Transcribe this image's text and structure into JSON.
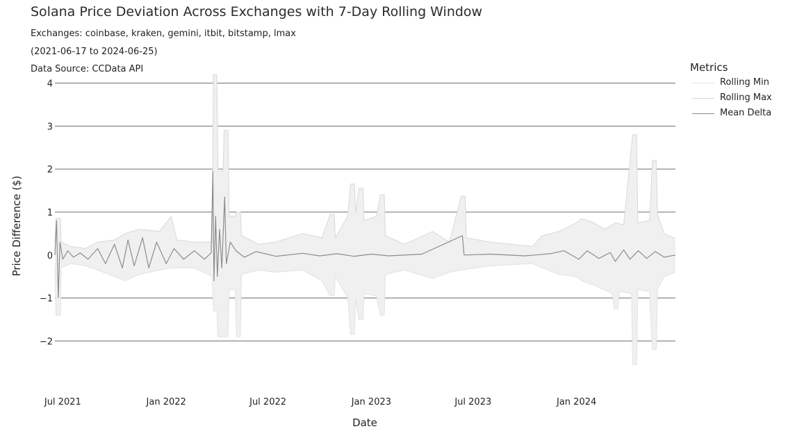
{
  "chart_data": {
    "type": "line",
    "title": "Solana Price Deviation Across Exchanges with 7-Day Rolling Window",
    "subtitle_lines": [
      "Exchanges: coinbase, kraken, gemini, itbit, bitstamp, lmax",
      "(2021-06-17 to 2024-06-25)",
      "Data Source: CCData API"
    ],
    "xlabel": "Date",
    "ylabel": "Price Difference ($)",
    "x_range": [
      "2021-06-17",
      "2024-06-25"
    ],
    "ylim": [
      -2.9,
      4.3
    ],
    "y_ticks": [
      -2,
      -1,
      0,
      1,
      2,
      3,
      4
    ],
    "y_tick_labels": [
      "−2",
      "−1",
      "0",
      "1",
      "2",
      "3",
      "4"
    ],
    "x_ticks": [
      "2021-07-01",
      "2022-01-01",
      "2022-07-01",
      "2023-01-01",
      "2023-07-01",
      "2024-01-01"
    ],
    "x_tick_labels": [
      "Jul 2021",
      "Jan 2022",
      "Jul 2022",
      "Jan 2023",
      "Jul 2023",
      "Jan 2024"
    ],
    "grid": "horizontal",
    "legend": {
      "title": "Metrics",
      "position": "right",
      "entries": [
        "Rolling Min",
        "Rolling Max",
        "Mean Delta"
      ]
    },
    "series": [
      {
        "name": "Rolling Max",
        "color": "#d8d8d8",
        "points": [
          [
            "2021-06-17",
            0.3
          ],
          [
            "2021-06-19",
            0.85
          ],
          [
            "2021-06-27",
            0.85
          ],
          [
            "2021-06-28",
            0.3
          ],
          [
            "2021-07-15",
            0.2
          ],
          [
            "2021-08-10",
            0.15
          ],
          [
            "2021-09-01",
            0.3
          ],
          [
            "2021-10-01",
            0.35
          ],
          [
            "2021-10-20",
            0.5
          ],
          [
            "2021-11-15",
            0.6
          ],
          [
            "2021-12-20",
            0.55
          ],
          [
            "2022-01-10",
            0.9
          ],
          [
            "2022-01-20",
            0.35
          ],
          [
            "2022-02-20",
            0.3
          ],
          [
            "2022-03-24",
            0.3
          ],
          [
            "2022-03-26",
            4.2
          ],
          [
            "2022-04-01",
            4.2
          ],
          [
            "2022-04-03",
            1.95
          ],
          [
            "2022-04-12",
            1.95
          ],
          [
            "2022-04-14",
            2.9
          ],
          [
            "2022-04-21",
            2.9
          ],
          [
            "2022-04-23",
            0.9
          ],
          [
            "2022-05-04",
            0.9
          ],
          [
            "2022-05-06",
            1.0
          ],
          [
            "2022-05-13",
            1.0
          ],
          [
            "2022-05-15",
            0.45
          ],
          [
            "2022-06-15",
            0.25
          ],
          [
            "2022-07-15",
            0.3
          ],
          [
            "2022-09-01",
            0.5
          ],
          [
            "2022-10-05",
            0.4
          ],
          [
            "2022-10-20",
            0.95
          ],
          [
            "2022-10-27",
            0.95
          ],
          [
            "2022-10-29",
            0.4
          ],
          [
            "2022-11-20",
            0.9
          ],
          [
            "2022-11-25",
            1.65
          ],
          [
            "2022-12-02",
            1.65
          ],
          [
            "2022-12-04",
            1.0
          ],
          [
            "2022-12-10",
            1.55
          ],
          [
            "2022-12-17",
            1.55
          ],
          [
            "2022-12-19",
            0.8
          ],
          [
            "2023-01-10",
            0.9
          ],
          [
            "2023-01-17",
            1.4
          ],
          [
            "2023-01-24",
            1.4
          ],
          [
            "2023-01-26",
            0.45
          ],
          [
            "2023-03-01",
            0.25
          ],
          [
            "2023-04-20",
            0.55
          ],
          [
            "2023-05-20",
            0.3
          ],
          [
            "2023-06-10",
            1.37
          ],
          [
            "2023-06-17",
            1.37
          ],
          [
            "2023-06-19",
            0.4
          ],
          [
            "2023-08-01",
            0.3
          ],
          [
            "2023-10-15",
            0.2
          ],
          [
            "2023-11-01",
            0.45
          ],
          [
            "2023-12-01",
            0.55
          ],
          [
            "2024-01-01",
            0.75
          ],
          [
            "2024-01-10",
            0.85
          ],
          [
            "2024-02-01",
            0.75
          ],
          [
            "2024-02-20",
            0.6
          ],
          [
            "2024-03-10",
            0.75
          ],
          [
            "2024-03-25",
            0.7
          ],
          [
            "2024-04-10",
            2.8
          ],
          [
            "2024-04-17",
            2.8
          ],
          [
            "2024-04-19",
            0.75
          ],
          [
            "2024-05-10",
            0.8
          ],
          [
            "2024-05-15",
            2.2
          ],
          [
            "2024-05-22",
            2.2
          ],
          [
            "2024-05-24",
            0.95
          ],
          [
            "2024-06-05",
            0.5
          ],
          [
            "2024-06-25",
            0.38
          ]
        ]
      },
      {
        "name": "Rolling Min",
        "color": "#e2e2e2",
        "points": [
          [
            "2021-06-17",
            -0.25
          ],
          [
            "2021-06-19",
            -1.4
          ],
          [
            "2021-06-27",
            -1.4
          ],
          [
            "2021-06-28",
            -0.3
          ],
          [
            "2021-07-15",
            -0.2
          ],
          [
            "2021-08-10",
            -0.25
          ],
          [
            "2021-09-01",
            -0.35
          ],
          [
            "2021-10-01",
            -0.5
          ],
          [
            "2021-10-20",
            -0.6
          ],
          [
            "2021-11-15",
            -0.45
          ],
          [
            "2021-12-20",
            -0.35
          ],
          [
            "2022-01-10",
            -0.3
          ],
          [
            "2022-02-20",
            -0.3
          ],
          [
            "2022-03-24",
            -0.5
          ],
          [
            "2022-03-26",
            -1.3
          ],
          [
            "2022-04-01",
            -1.3
          ],
          [
            "2022-04-03",
            -1.9
          ],
          [
            "2022-04-21",
            -1.9
          ],
          [
            "2022-04-23",
            -0.8
          ],
          [
            "2022-05-04",
            -0.8
          ],
          [
            "2022-05-06",
            -1.9
          ],
          [
            "2022-05-13",
            -1.9
          ],
          [
            "2022-05-15",
            -0.45
          ],
          [
            "2022-06-15",
            -0.35
          ],
          [
            "2022-07-15",
            -0.4
          ],
          [
            "2022-09-01",
            -0.35
          ],
          [
            "2022-10-05",
            -0.6
          ],
          [
            "2022-10-20",
            -0.95
          ],
          [
            "2022-10-27",
            -0.95
          ],
          [
            "2022-10-29",
            -0.5
          ],
          [
            "2022-11-20",
            -1.0
          ],
          [
            "2022-11-25",
            -1.85
          ],
          [
            "2022-12-02",
            -1.85
          ],
          [
            "2022-12-04",
            -1.0
          ],
          [
            "2022-12-10",
            -1.5
          ],
          [
            "2022-12-17",
            -1.5
          ],
          [
            "2022-12-19",
            -0.9
          ],
          [
            "2023-01-10",
            -0.95
          ],
          [
            "2023-01-17",
            -1.4
          ],
          [
            "2023-01-24",
            -1.4
          ],
          [
            "2023-01-26",
            -0.45
          ],
          [
            "2023-03-01",
            -0.35
          ],
          [
            "2023-04-20",
            -0.55
          ],
          [
            "2023-05-20",
            -0.4
          ],
          [
            "2023-06-10",
            -0.35
          ],
          [
            "2023-08-01",
            -0.25
          ],
          [
            "2023-10-15",
            -0.2
          ],
          [
            "2023-11-01",
            -0.3
          ],
          [
            "2023-12-01",
            -0.45
          ],
          [
            "2024-01-01",
            -0.5
          ],
          [
            "2024-01-10",
            -0.6
          ],
          [
            "2024-02-01",
            -0.7
          ],
          [
            "2024-03-05",
            -0.9
          ],
          [
            "2024-03-08",
            -1.25
          ],
          [
            "2024-03-15",
            -1.25
          ],
          [
            "2024-03-17",
            -0.85
          ],
          [
            "2024-04-08",
            -0.9
          ],
          [
            "2024-04-10",
            -2.55
          ],
          [
            "2024-04-17",
            -2.55
          ],
          [
            "2024-04-19",
            -0.8
          ],
          [
            "2024-05-10",
            -0.85
          ],
          [
            "2024-05-15",
            -2.2
          ],
          [
            "2024-05-22",
            -2.2
          ],
          [
            "2024-05-24",
            -0.8
          ],
          [
            "2024-06-05",
            -0.5
          ],
          [
            "2024-06-25",
            -0.4
          ]
        ]
      },
      {
        "name": "Mean Delta",
        "color": "#8c8c8c",
        "points": [
          [
            "2021-06-17",
            0.0
          ],
          [
            "2021-06-20",
            0.8
          ],
          [
            "2021-06-23",
            -1.0
          ],
          [
            "2021-06-26",
            0.3
          ],
          [
            "2021-07-01",
            -0.1
          ],
          [
            "2021-07-10",
            0.1
          ],
          [
            "2021-07-20",
            -0.05
          ],
          [
            "2021-08-01",
            0.05
          ],
          [
            "2021-08-15",
            -0.1
          ],
          [
            "2021-09-01",
            0.15
          ],
          [
            "2021-09-15",
            -0.2
          ],
          [
            "2021-10-01",
            0.25
          ],
          [
            "2021-10-15",
            -0.3
          ],
          [
            "2021-10-25",
            0.35
          ],
          [
            "2021-11-05",
            -0.25
          ],
          [
            "2021-11-20",
            0.4
          ],
          [
            "2021-12-01",
            -0.3
          ],
          [
            "2021-12-15",
            0.3
          ],
          [
            "2022-01-01",
            -0.2
          ],
          [
            "2022-01-15",
            0.15
          ],
          [
            "2022-02-01",
            -0.1
          ],
          [
            "2022-02-20",
            0.1
          ],
          [
            "2022-03-10",
            -0.1
          ],
          [
            "2022-03-22",
            0.05
          ],
          [
            "2022-03-25",
            1.95
          ],
          [
            "2022-03-27",
            -0.6
          ],
          [
            "2022-03-30",
            0.9
          ],
          [
            "2022-04-02",
            -0.5
          ],
          [
            "2022-04-06",
            0.6
          ],
          [
            "2022-04-10",
            -0.3
          ],
          [
            "2022-04-15",
            1.35
          ],
          [
            "2022-04-18",
            -0.2
          ],
          [
            "2022-04-25",
            0.3
          ],
          [
            "2022-05-05",
            0.1
          ],
          [
            "2022-05-20",
            -0.05
          ],
          [
            "2022-06-10",
            0.08
          ],
          [
            "2022-07-15",
            -0.03
          ],
          [
            "2022-09-01",
            0.04
          ],
          [
            "2022-10-01",
            -0.02
          ],
          [
            "2022-11-01",
            0.03
          ],
          [
            "2022-12-01",
            -0.03
          ],
          [
            "2023-01-01",
            0.02
          ],
          [
            "2023-02-01",
            -0.02
          ],
          [
            "2023-04-01",
            0.02
          ],
          [
            "2023-06-12",
            0.45
          ],
          [
            "2023-06-15",
            0.0
          ],
          [
            "2023-08-01",
            0.02
          ],
          [
            "2023-10-01",
            -0.02
          ],
          [
            "2023-11-15",
            0.03
          ],
          [
            "2023-12-10",
            0.1
          ],
          [
            "2024-01-05",
            -0.1
          ],
          [
            "2024-01-20",
            0.1
          ],
          [
            "2024-02-10",
            -0.08
          ],
          [
            "2024-03-01",
            0.06
          ],
          [
            "2024-03-10",
            -0.15
          ],
          [
            "2024-03-25",
            0.12
          ],
          [
            "2024-04-05",
            -0.1
          ],
          [
            "2024-04-20",
            0.1
          ],
          [
            "2024-05-05",
            -0.08
          ],
          [
            "2024-05-20",
            0.08
          ],
          [
            "2024-06-05",
            -0.05
          ],
          [
            "2024-06-25",
            0.0
          ]
        ]
      }
    ]
  }
}
